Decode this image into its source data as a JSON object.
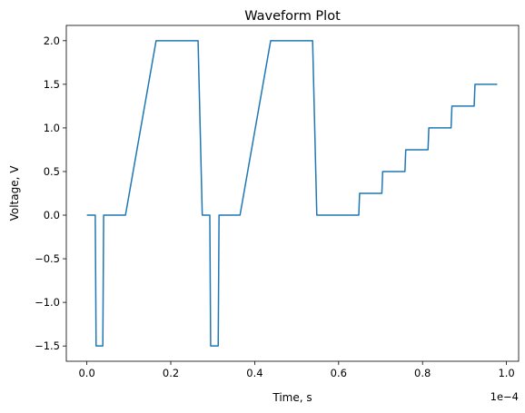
{
  "chart_data": {
    "type": "line",
    "title": "Waveform Plot",
    "xlabel": "Time, s",
    "ylabel": "Voltage, V",
    "x_offset_label": "1e−4",
    "x_scale": 0.0001,
    "xlim": [
      -4.9e-06,
      0.0001029
    ],
    "ylim": [
      -1.675,
      2.175
    ],
    "grid": false,
    "line_color": "#1f77b4",
    "x_ticks": [
      0.0,
      2e-05,
      4e-05,
      6e-05,
      8e-05,
      0.0001
    ],
    "x_tick_labels": [
      "0.0",
      "0.2",
      "0.4",
      "0.6",
      "0.8",
      "1.0"
    ],
    "y_ticks": [
      -1.5,
      -1.0,
      -0.5,
      0.0,
      0.5,
      1.0,
      1.5,
      2.0
    ],
    "y_tick_labels": [
      "−1.5",
      "−1.0",
      "−0.5",
      "0.0",
      "0.5",
      "1.0",
      "1.5",
      "2.0"
    ],
    "series": [
      {
        "x": [
          0.0,
          2e-06,
          2.2e-06,
          3.8e-06,
          4e-06,
          9.2e-06,
          1.65e-05,
          2.65e-05,
          2.75e-05,
          2.93e-05,
          2.95e-05,
          3.13e-05,
          3.15e-05,
          3.65e-05,
          4.38e-05,
          5.38e-05,
          5.48e-05,
          6.48e-05,
          6.5e-05,
          7.03e-05,
          7.05e-05,
          7.58e-05,
          7.6e-05,
          8.13e-05,
          8.15e-05,
          8.68e-05,
          8.7e-05,
          9.23e-05,
          9.25e-05,
          9.78e-05
        ],
        "y": [
          0.0,
          0.0,
          -1.5,
          -1.5,
          0.0,
          0.0,
          2.0,
          2.0,
          0.0,
          0.0,
          -1.5,
          -1.5,
          0.0,
          0.0,
          2.0,
          2.0,
          0.0,
          0.0,
          0.25,
          0.25,
          0.5,
          0.5,
          0.75,
          0.75,
          1.0,
          1.0,
          1.25,
          1.25,
          1.5,
          1.5
        ]
      }
    ]
  }
}
